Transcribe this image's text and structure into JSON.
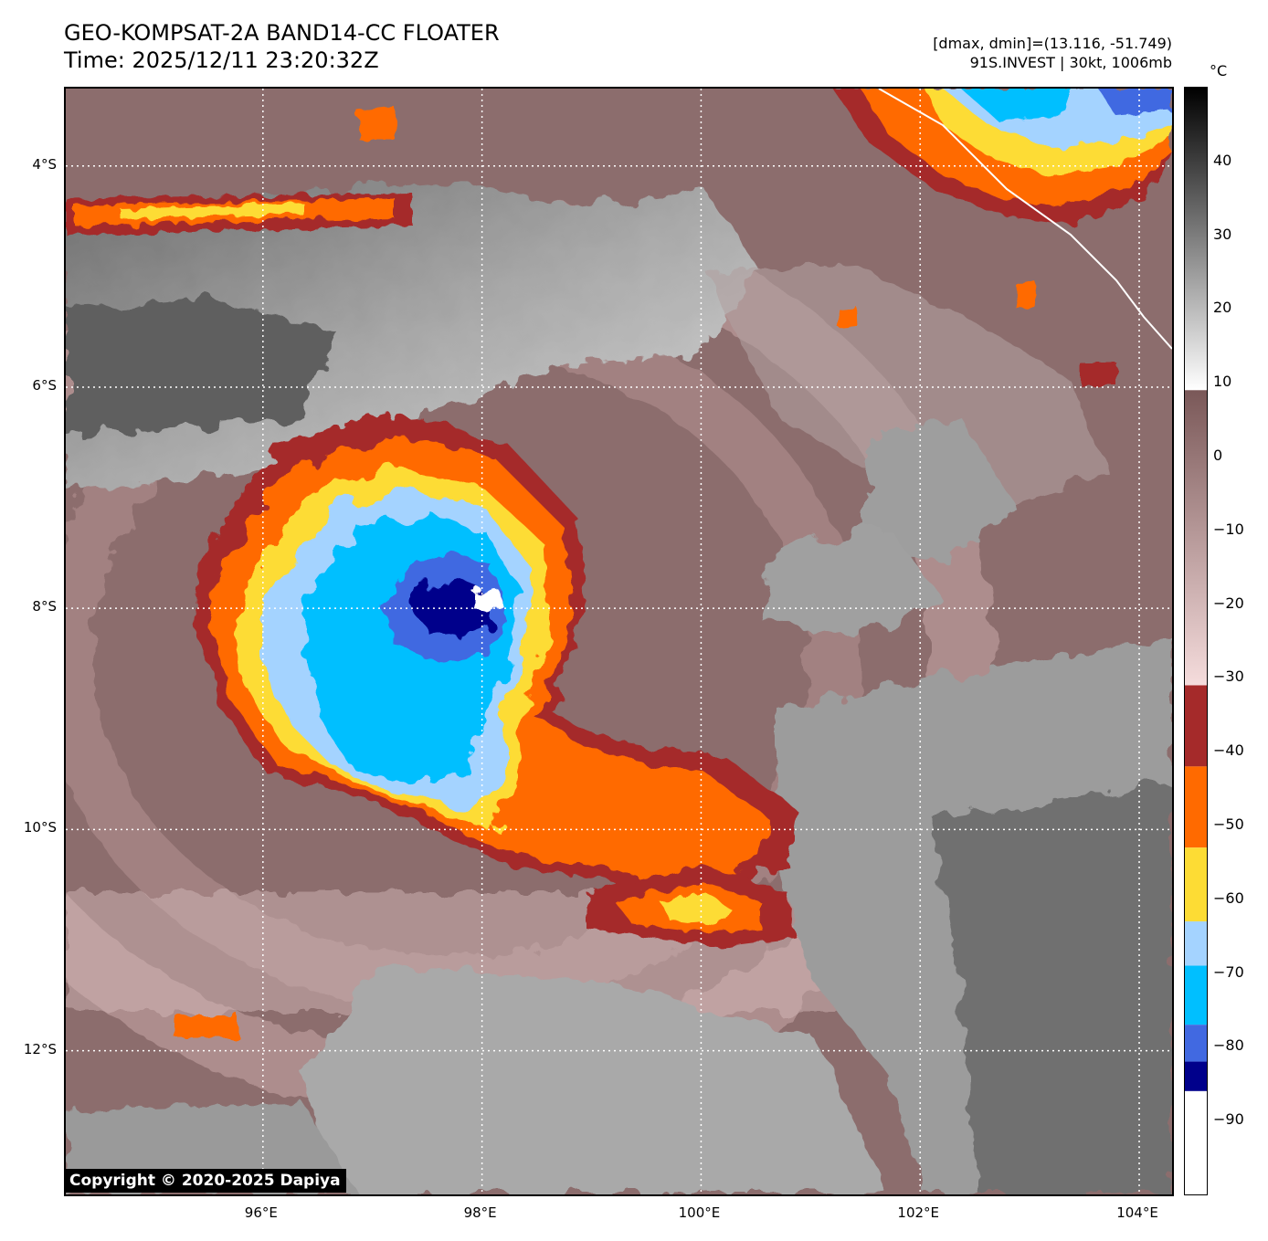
{
  "title": {
    "line1": "GEO-KOMPSAT-2A BAND14-CC FLOATER",
    "line2": "Time: 2025/12/11 23:20:32Z"
  },
  "info": {
    "line1": "[dmax, dmin]=(13.116, -51.749)",
    "line2": "91S.INVEST | 30kt, 1006mb"
  },
  "map": {
    "lon_range": [
      94.2,
      104.3
    ],
    "lat_range": [
      -13.3,
      -3.3
    ],
    "lat_ticks": [
      {
        "value": -4,
        "label": "4°S"
      },
      {
        "value": -6,
        "label": "6°S"
      },
      {
        "value": -8,
        "label": "8°S"
      },
      {
        "value": -10,
        "label": "10°S"
      },
      {
        "value": -12,
        "label": "12°S"
      }
    ],
    "lon_ticks": [
      {
        "value": 96,
        "label": "96°E"
      },
      {
        "value": 98,
        "label": "98°E"
      },
      {
        "value": 100,
        "label": "100°E"
      },
      {
        "value": 102,
        "label": "102°E"
      },
      {
        "value": 104,
        "label": "104°E"
      }
    ],
    "storm_center": {
      "lon": 98.1,
      "lat": -7.9
    }
  },
  "colorbar": {
    "unit": "°C",
    "range": [
      -100,
      50
    ],
    "ticks": [
      {
        "value": 40,
        "label": "40"
      },
      {
        "value": 30,
        "label": "30"
      },
      {
        "value": 20,
        "label": "20"
      },
      {
        "value": 10,
        "label": "10"
      },
      {
        "value": 0,
        "label": "0"
      },
      {
        "value": -10,
        "label": "−10"
      },
      {
        "value": -20,
        "label": "−20"
      },
      {
        "value": -30,
        "label": "−30"
      },
      {
        "value": -40,
        "label": "−40"
      },
      {
        "value": -50,
        "label": "−50"
      },
      {
        "value": -60,
        "label": "−60"
      },
      {
        "value": -70,
        "label": "−70"
      },
      {
        "value": -80,
        "label": "−80"
      },
      {
        "value": -90,
        "label": "−90"
      }
    ],
    "segments": [
      {
        "from": 9,
        "to": 50,
        "kind": "gray"
      },
      {
        "from": -31,
        "to": 9,
        "kind": "brown"
      },
      {
        "from": -42,
        "to": -31,
        "color": "#a52a2a"
      },
      {
        "from": -53,
        "to": -42,
        "color": "#ff6a00"
      },
      {
        "from": -63,
        "to": -53,
        "color": "#fddc34"
      },
      {
        "from": -69,
        "to": -63,
        "color": "#a4d3ff"
      },
      {
        "from": -77,
        "to": -69,
        "color": "#00bfff"
      },
      {
        "from": -82,
        "to": -77,
        "color": "#4169e1"
      },
      {
        "from": -86,
        "to": -82,
        "color": "#00008b"
      },
      {
        "from": -100,
        "to": -86,
        "color": "#ffffff"
      }
    ]
  },
  "copyright": "Copyright © 2020-2025 Dapiya"
}
